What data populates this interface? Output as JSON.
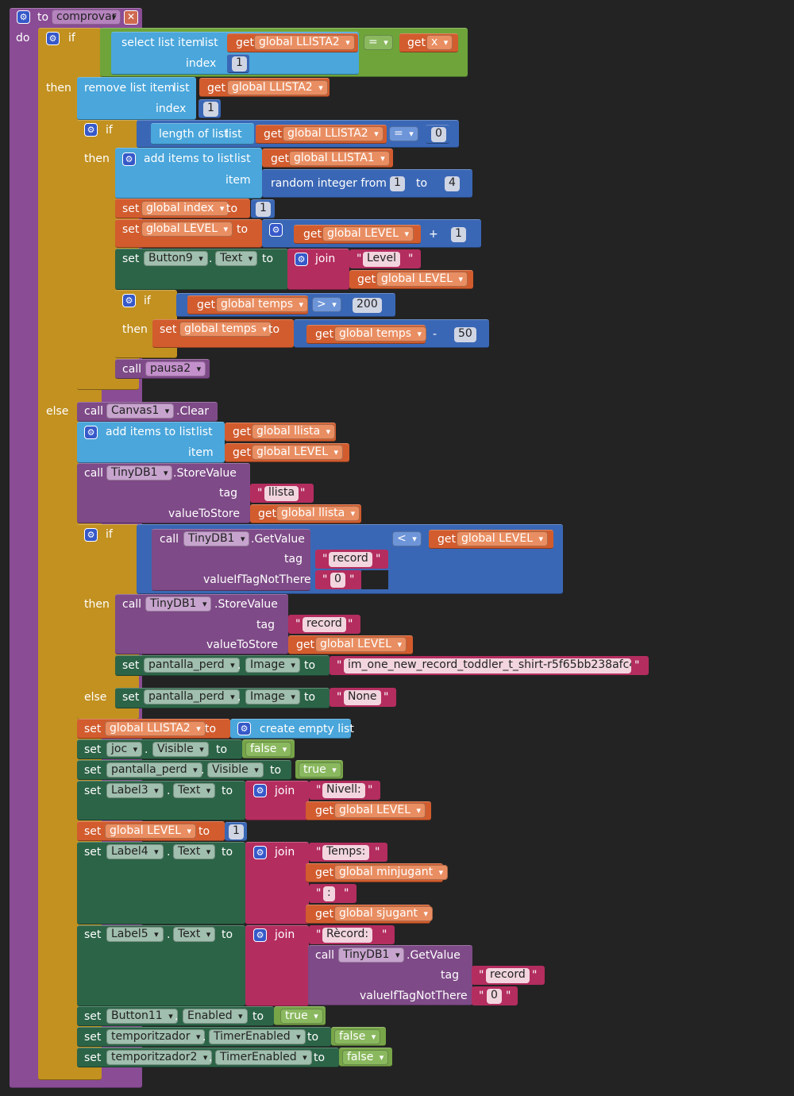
{
  "procedure": {
    "kw_to": "to",
    "name": "comprovar",
    "kw_do": "do"
  },
  "kw": {
    "if": "if",
    "then": "then",
    "else": "else",
    "set": "set",
    "to": "to",
    "get": "get",
    "call": "call",
    "list": "list",
    "index": "index",
    "item": "item",
    "join": "join",
    "dot": ".",
    "tag": "tag",
    "valueToStore": "valueToStore",
    "valueIfTagNotThere": "valueIfTagNotThere",
    "quote": "\""
  },
  "blocks": {
    "select_list_item": "select list item",
    "remove_list_item": "remove list item",
    "length_of_list": "length of list",
    "add_items_to_list": "add items to list",
    "random_integer_from": "random integer from",
    "create_empty_list": "create empty list"
  },
  "vars": {
    "llista2": "global LLISTA2",
    "llista1": "global LLISTA1",
    "x": "x",
    "index": "global index",
    "level": "global LEVEL",
    "temps": "global temps",
    "llista": "global llista",
    "minjugant": "global minjugant",
    "sjugant": "global sjugant"
  },
  "components": {
    "button9": "Button9",
    "canvas1": "Canvas1",
    "tinydb1": "TinyDB1",
    "pantalla_perd": "pantalla_perd",
    "joc": "joc",
    "label3": "Label3",
    "label4": "Label4",
    "label5": "Label5",
    "button11": "Button11",
    "temporitzador": "temporitzador",
    "temporitzador2": "temporitzador2"
  },
  "props": {
    "text": "Text",
    "image": "Image",
    "visible": "Visible",
    "enabled": "Enabled",
    "timer_enabled": "TimerEnabled"
  },
  "methods": {
    "clear": ".Clear",
    "store_value": ".StoreValue",
    "get_value": ".GetValue"
  },
  "procs": {
    "pausa2": "pausa2"
  },
  "ops": {
    "eq": "=",
    "gt": ">",
    "lt": "<",
    "plus": "+",
    "minus": "-"
  },
  "nums": {
    "one": "1",
    "zero": "0",
    "four": "4",
    "two_hundred": "200",
    "fifty": "50"
  },
  "strings": {
    "level": "Level",
    "llista": "llista",
    "record": "record",
    "zero": "0",
    "image_file": "im_one_new_record_toddler_t_shirt-r5f65bb238afc4...",
    "none": "None",
    "nivell": "Nivell:",
    "temps": "Temps:",
    "colon": ":",
    "record_label": "Rècord:"
  },
  "bools": {
    "false": "false",
    "true": "true"
  },
  "icons": {
    "gear": "gear-icon",
    "close": "close-icon",
    "dropdown": "chevron-down-icon"
  },
  "colors": {
    "procedure": "#8a4c95",
    "control": "#c29120",
    "lists": "#4aa6db",
    "variables": "#d25c2e",
    "math": "#3a67b5",
    "logic": "#6ea43a",
    "text": "#b42d5f",
    "component_set": "#2c6447",
    "component_call": "#7e4a87",
    "background": "#232323"
  }
}
